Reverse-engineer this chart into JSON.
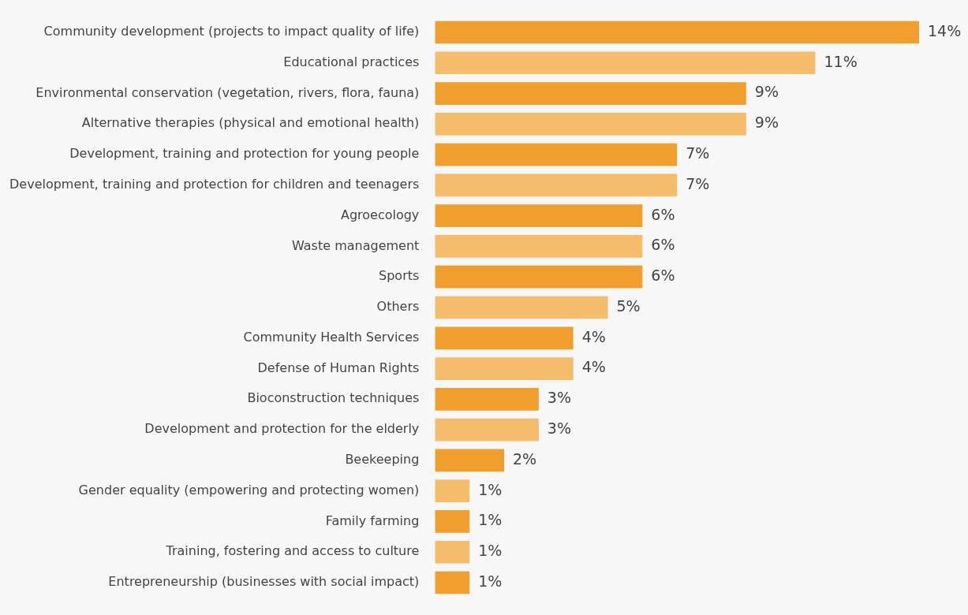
{
  "chart_data": {
    "type": "bar",
    "orientation": "horizontal",
    "categories": [
      "Community development (projects to impact quality of life)",
      "Educational practices",
      "Environmental conservation (vegetation, rivers, flora, fauna)",
      "Alternative therapies (physical and emotional health)",
      "Development, training and protection for young people",
      "Development, training and protection for children and teenagers",
      "Agroecology",
      "Waste management",
      "Sports",
      "Others",
      "Community Health Services",
      "Defense of Human Rights",
      "Bioconstruction techniques",
      "Development and protection for the elderly",
      "Beekeeping",
      "Gender equality (empowering and protecting women)",
      "Family farming",
      "Training, fostering and access to culture",
      "Entrepreneurship (businesses with social impact)"
    ],
    "values": [
      14,
      11,
      9,
      9,
      7,
      7,
      6,
      6,
      6,
      5,
      4,
      4,
      3,
      3,
      2,
      1,
      1,
      1,
      1
    ],
    "value_labels": [
      "14%",
      "11%",
      "9%",
      "9%",
      "7%",
      "7%",
      "6%",
      "6%",
      "6%",
      "5%",
      "4%",
      "4%",
      "3%",
      "3%",
      "2%",
      "1%",
      "1%",
      "1%",
      "1%"
    ],
    "colors": [
      "#f09f2f",
      "#f5bc6c",
      "#f09f2f",
      "#f5bc6c",
      "#f09f2f",
      "#f5bc6c",
      "#f09f2f",
      "#f5bc6c",
      "#f09f2f",
      "#f5bc6c",
      "#f09f2f",
      "#f5bc6c",
      "#f09f2f",
      "#f5bc6c",
      "#f09f2f",
      "#f5bc6c",
      "#f09f2f",
      "#f5bc6c",
      "#f09f2f"
    ],
    "tick_labels": "y",
    "legend": false
  }
}
